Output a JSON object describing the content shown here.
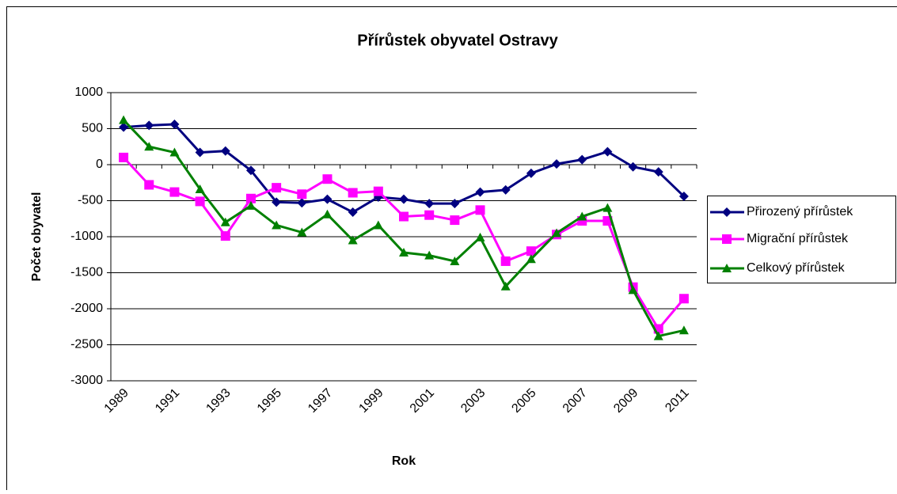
{
  "chart_data": {
    "type": "line",
    "title": "Přírůstek obyvatel Ostravy",
    "x_label": "Rok",
    "y_label": "Počet obyvatel",
    "categories": [
      "1989",
      null,
      "1991",
      null,
      "1993",
      null,
      "1995",
      null,
      "1997",
      null,
      "1999",
      null,
      "2001",
      null,
      "2003",
      null,
      "2005",
      null,
      "2007",
      null,
      "2009",
      null,
      "2011"
    ],
    "series": [
      {
        "name": "Přirozený přírůstek",
        "color": "#000080",
        "marker": "diamond",
        "values": [
          520,
          545,
          560,
          170,
          190,
          -80,
          -520,
          -530,
          -480,
          -660,
          -450,
          -480,
          -540,
          -540,
          -380,
          -350,
          -120,
          10,
          70,
          180,
          -30,
          -100,
          -440
        ]
      },
      {
        "name": "Migrační přírůstek",
        "color": "#ff00ff",
        "marker": "square",
        "values": [
          100,
          -280,
          -380,
          -510,
          -990,
          -470,
          -320,
          -410,
          -200,
          -390,
          -370,
          -720,
          -700,
          -770,
          -630,
          -1340,
          -1200,
          -970,
          -780,
          -780,
          -1700,
          -2280,
          -1860
        ]
      },
      {
        "name": "Celkový přírůstek",
        "color": "#008000",
        "marker": "triangle",
        "values": [
          620,
          250,
          170,
          -340,
          -800,
          -570,
          -840,
          -940,
          -690,
          -1050,
          -840,
          -1220,
          -1260,
          -1340,
          -1010,
          -1690,
          -1310,
          -950,
          -720,
          -600,
          -1740,
          -2380,
          -2300
        ]
      }
    ],
    "ylim": [
      -3000,
      1000
    ],
    "yticks": [
      -3000,
      -2500,
      -2000,
      -1500,
      -1000,
      -500,
      0,
      500,
      1000
    ],
    "grid": true,
    "legend": "right"
  }
}
